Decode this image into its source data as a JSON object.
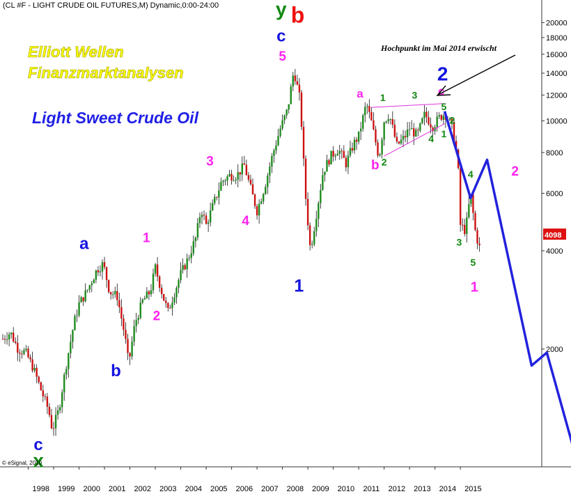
{
  "header": {
    "title": "(CL #F - LIGHT CRUDE OIL FUTURES,M) Dynamic,0:00-24:00"
  },
  "overlay": {
    "line1": "Elliott Wellen",
    "line2": "Finanzmarktanalysen",
    "line3": "Light Sweet Crude Oil"
  },
  "annotation": {
    "text": "Hochpunkt im Mai 2014 erwischt"
  },
  "copyright": "© eSignal, 2010",
  "last_price": {
    "label": "4098"
  },
  "colors": {
    "blue": "#1414e0",
    "magenta": "#ff22ee",
    "green": "#118811",
    "red": "#ee1111",
    "projection": "#2222dd",
    "up": "#1e8a1e",
    "down": "#cc1111",
    "triangle": "#dd33dd"
  },
  "chart_data": {
    "type": "candlestick",
    "title": "(CL #F - LIGHT CRUDE OIL FUTURES,M) Dynamic,0:00-24:00",
    "y_scale": "log",
    "ylim": [
      880,
      23000
    ],
    "ytick_labels": [
      {
        "label": "20000",
        "v": 20000
      },
      {
        "label": "18000",
        "v": 18000
      },
      {
        "label": "16000",
        "v": 16000
      },
      {
        "label": "14000",
        "v": 14000
      },
      {
        "label": "12000",
        "v": 12000
      },
      {
        "label": "10000",
        "v": 10000
      },
      {
        "label": "8000",
        "v": 8000
      },
      {
        "label": "6000",
        "v": 6000
      },
      {
        "label": "4000",
        "v": 4000
      },
      {
        "label": "2000",
        "v": 2000
      }
    ],
    "xlim": [
      1997.0,
      2018.2
    ],
    "xtick_labels": [
      "1998",
      "1999",
      "2000",
      "2001",
      "2002",
      "2003",
      "2004",
      "2005",
      "2006",
      "2007",
      "2008",
      "2009",
      "2010",
      "2011",
      "2012",
      "2013",
      "2014",
      "2015"
    ],
    "price_path": [
      [
        1997.0,
        2150
      ],
      [
        1997.3,
        2250
      ],
      [
        1997.6,
        2000
      ],
      [
        1997.9,
        1950
      ],
      [
        1998.2,
        1750
      ],
      [
        1998.5,
        1500
      ],
      [
        1998.8,
        1300
      ],
      [
        1998.95,
        1130
      ],
      [
        1999.2,
        1300
      ],
      [
        1999.5,
        1800
      ],
      [
        1999.8,
        2400
      ],
      [
        2000.0,
        2750
      ],
      [
        2000.3,
        3000
      ],
      [
        2000.7,
        3500
      ],
      [
        2000.95,
        3650
      ],
      [
        2001.2,
        3000
      ],
      [
        2001.5,
        2900
      ],
      [
        2001.8,
        2200
      ],
      [
        2001.95,
        1800
      ],
      [
        2002.2,
        2400
      ],
      [
        2002.5,
        2800
      ],
      [
        2002.8,
        3000
      ],
      [
        2003.0,
        3550
      ],
      [
        2003.3,
        2900
      ],
      [
        2003.5,
        2600
      ],
      [
        2003.7,
        2900
      ],
      [
        2004.0,
        3400
      ],
      [
        2004.3,
        3800
      ],
      [
        2004.6,
        4400
      ],
      [
        2004.8,
        5400
      ],
      [
        2005.0,
        4800
      ],
      [
        2005.3,
        5600
      ],
      [
        2005.6,
        6500
      ],
      [
        2005.9,
        6800
      ],
      [
        2006.2,
        6800
      ],
      [
        2006.5,
        7300
      ],
      [
        2006.8,
        6000
      ],
      [
        2007.0,
        5300
      ],
      [
        2007.3,
        6300
      ],
      [
        2007.6,
        7800
      ],
      [
        2007.9,
        9400
      ],
      [
        2008.2,
        10800
      ],
      [
        2008.45,
        14300
      ],
      [
        2008.7,
        11500
      ],
      [
        2008.9,
        6000
      ],
      [
        2009.1,
        4000
      ],
      [
        2009.3,
        5000
      ],
      [
        2009.6,
        7000
      ],
      [
        2009.9,
        7800
      ],
      [
        2010.2,
        8200
      ],
      [
        2010.5,
        7400
      ],
      [
        2010.8,
        8500
      ],
      [
        2011.0,
        9000
      ],
      [
        2011.3,
        11300
      ],
      [
        2011.5,
        9900
      ],
      [
        2011.8,
        7700
      ],
      [
        2012.0,
        10000
      ],
      [
        2012.2,
        10500
      ],
      [
        2012.5,
        8400
      ],
      [
        2012.8,
        8900
      ],
      [
        2013.0,
        9500
      ],
      [
        2013.3,
        9000
      ],
      [
        2013.6,
        10500
      ],
      [
        2013.9,
        9600
      ],
      [
        2014.2,
        10300
      ],
      [
        2014.4,
        10500
      ],
      [
        2014.7,
        9500
      ],
      [
        2014.9,
        7500
      ],
      [
        2015.0,
        4800
      ],
      [
        2015.2,
        4600
      ],
      [
        2015.4,
        6000
      ],
      [
        2015.6,
        4500
      ],
      [
        2015.75,
        4098
      ]
    ],
    "projection": [
      {
        "x": 2014.38,
        "y": 10700
      },
      {
        "x": 2015.4,
        "y": 5800
      },
      {
        "x": 2016.05,
        "y": 7600
      },
      {
        "x": 2017.8,
        "y": 1780
      },
      {
        "x": 2018.4,
        "y": 1950
      },
      {
        "x": 2019.5,
        "y": 960
      }
    ],
    "triangle_lines": [
      {
        "x1": 2011.5,
        "y1": 11000,
        "x2": 2014.38,
        "y2": 11300
      },
      {
        "x1": 2012.0,
        "y1": 7800,
        "x2": 2014.38,
        "y2": 9800
      }
    ],
    "wave_labels": [
      {
        "text": "y",
        "x": 2007.95,
        "y": 21000,
        "color": "green",
        "size": 28
      },
      {
        "text": "b",
        "x": 2008.6,
        "y": 20000,
        "color": "red",
        "size": 32
      },
      {
        "text": "c",
        "x": 2007.95,
        "y": 17500,
        "color": "blue",
        "size": 24
      },
      {
        "text": "5",
        "x": 2008.0,
        "y": 15300,
        "color": "magenta",
        "size": 19
      },
      {
        "text": "1",
        "x": 2008.65,
        "y": 3000,
        "color": "blue",
        "size": 25
      },
      {
        "text": "a",
        "x": 2000.2,
        "y": 4050,
        "color": "blue",
        "size": 24
      },
      {
        "text": "b",
        "x": 2001.45,
        "y": 1650,
        "color": "blue",
        "size": 24
      },
      {
        "text": "c",
        "x": 1998.4,
        "y": 980,
        "color": "blue",
        "size": 24
      },
      {
        "text": "x",
        "x": 1998.4,
        "y": 870,
        "color": "green",
        "size": 28
      },
      {
        "text": "1",
        "x": 2002.65,
        "y": 4250,
        "color": "magenta",
        "size": 19
      },
      {
        "text": "2",
        "x": 2003.05,
        "y": 2450,
        "color": "magenta",
        "size": 19
      },
      {
        "text": "3",
        "x": 2005.15,
        "y": 7300,
        "color": "magenta",
        "size": 19
      },
      {
        "text": "4",
        "x": 2006.55,
        "y": 4800,
        "color": "magenta",
        "size": 19
      },
      {
        "text": "a",
        "x": 2011.05,
        "y": 11800,
        "color": "magenta",
        "size": 17
      },
      {
        "text": "b",
        "x": 2011.65,
        "y": 7100,
        "color": "magenta",
        "size": 19
      },
      {
        "text": "c",
        "x": 2014.25,
        "y": 12000,
        "color": "magenta",
        "size": 17
      },
      {
        "text": "2",
        "x": 2014.3,
        "y": 13300,
        "color": "blue",
        "size": 28
      },
      {
        "text": "1",
        "x": 2011.95,
        "y": 11500,
        "color": "green",
        "size": 14
      },
      {
        "text": "2",
        "x": 2012.0,
        "y": 7300,
        "color": "green",
        "size": 14
      },
      {
        "text": "3",
        "x": 2013.2,
        "y": 11700,
        "color": "green",
        "size": 14
      },
      {
        "text": "4",
        "x": 2013.85,
        "y": 8600,
        "color": "green",
        "size": 14
      },
      {
        "text": "5",
        "x": 2014.35,
        "y": 10800,
        "color": "green",
        "size": 14
      },
      {
        "text": "1",
        "x": 2014.35,
        "y": 8900,
        "color": "green",
        "size": 14
      },
      {
        "text": "2",
        "x": 2014.68,
        "y": 9800,
        "color": "green",
        "size": 14
      },
      {
        "text": "4",
        "x": 2015.4,
        "y": 6700,
        "color": "green",
        "size": 14
      },
      {
        "text": "3",
        "x": 2014.95,
        "y": 4150,
        "color": "green",
        "size": 14
      },
      {
        "text": "5",
        "x": 2015.5,
        "y": 3600,
        "color": "green",
        "size": 14
      },
      {
        "text": "1",
        "x": 2015.55,
        "y": 3000,
        "color": "magenta",
        "size": 20
      },
      {
        "text": "2",
        "x": 2017.15,
        "y": 6800,
        "color": "magenta",
        "size": 19
      }
    ]
  }
}
